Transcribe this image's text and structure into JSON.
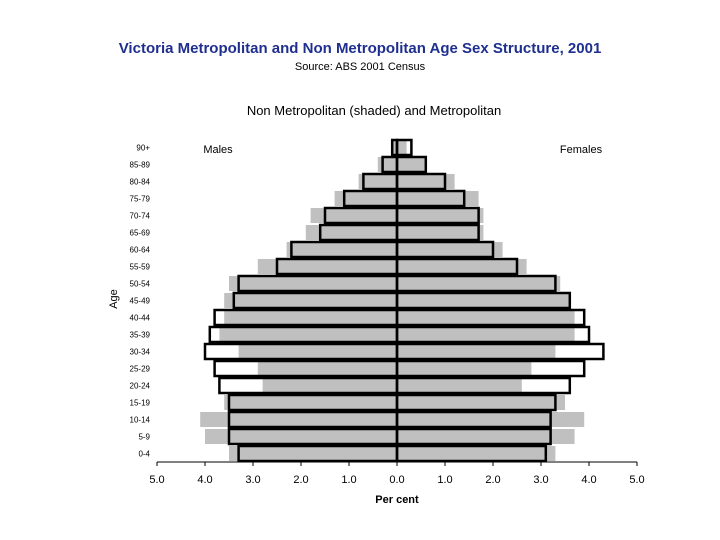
{
  "header": {
    "title": "Victoria Metropolitan and Non Metropolitan Age Sex Structure, 2001",
    "source": "Source: ABS 2001 Census"
  },
  "chart_data": {
    "type": "bar",
    "orientation": "horizontal-pyramid",
    "subtitle": "Non Metropolitan (shaded) and Metropolitan",
    "xlabel": "Per cent",
    "ylabel": "Age",
    "left_label": "Males",
    "right_label": "Females",
    "xlim": [
      -5,
      5
    ],
    "xticks": [
      -5,
      -4,
      -3,
      -2,
      -1,
      0,
      1,
      2,
      3,
      4,
      5
    ],
    "xtick_labels": [
      "5.0",
      "4.0",
      "3.0",
      "2.0",
      "1.0",
      "0.0",
      "1.0",
      "2.0",
      "3.0",
      "4.0",
      "5.0"
    ],
    "categories": [
      "0-4",
      "5-9",
      "10-14",
      "15-19",
      "20-24",
      "25-29",
      "30-34",
      "35-39",
      "40-44",
      "45-49",
      "50-54",
      "55-59",
      "60-64",
      "65-69",
      "70-74",
      "75-79",
      "80-84",
      "85-89",
      "90+"
    ],
    "series": [
      {
        "name": "Non Metropolitan",
        "style": "shaded",
        "color": "#c0c0c0",
        "males": [
          3.5,
          4.0,
          4.1,
          3.6,
          2.8,
          2.9,
          3.3,
          3.7,
          3.6,
          3.6,
          3.5,
          2.9,
          2.3,
          1.9,
          1.8,
          1.3,
          0.8,
          0.4,
          0.1
        ],
        "females": [
          3.3,
          3.7,
          3.9,
          3.5,
          2.6,
          2.8,
          3.3,
          3.7,
          3.7,
          3.6,
          3.4,
          2.7,
          2.2,
          1.8,
          1.8,
          1.7,
          1.2,
          0.6,
          0.2
        ]
      },
      {
        "name": "Metropolitan",
        "style": "outline",
        "color": "#000000",
        "males": [
          3.3,
          3.5,
          3.5,
          3.5,
          3.7,
          3.8,
          4.0,
          3.9,
          3.8,
          3.4,
          3.3,
          2.5,
          2.2,
          1.6,
          1.5,
          1.1,
          0.7,
          0.3,
          0.1
        ],
        "females": [
          3.1,
          3.2,
          3.2,
          3.3,
          3.6,
          3.9,
          4.3,
          4.0,
          3.9,
          3.6,
          3.3,
          2.5,
          2.0,
          1.7,
          1.7,
          1.4,
          1.0,
          0.6,
          0.3
        ]
      }
    ]
  }
}
